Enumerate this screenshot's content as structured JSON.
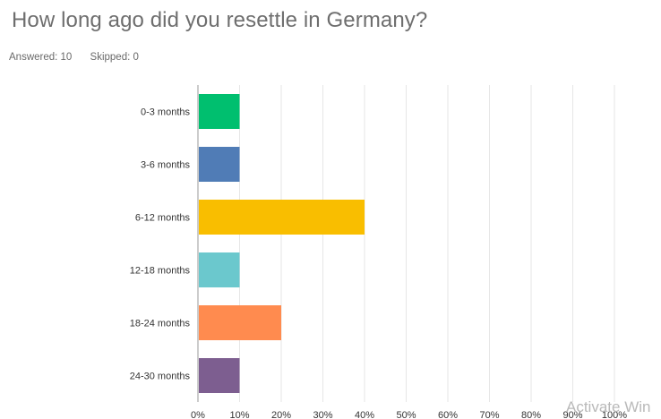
{
  "question": {
    "title": "How long ago did you resettle in Germany?",
    "answered": "Answered: 10",
    "skipped": "Skipped: 0"
  },
  "watermark": "Activate Win",
  "chart_data": {
    "type": "bar",
    "orientation": "horizontal",
    "categories": [
      "0-3 months",
      "3-6 months",
      "6-12 months",
      "12-18 months",
      "18-24 months",
      "24-30 months"
    ],
    "values": [
      10,
      10,
      40,
      10,
      20,
      10
    ],
    "colors": [
      "#00bf6f",
      "#507cb6",
      "#f9be00",
      "#6bc8cd",
      "#ff8b4f",
      "#7d5e90"
    ],
    "xlim": [
      0,
      100
    ],
    "xticks": [
      "0%",
      "10%",
      "20%",
      "30%",
      "40%",
      "50%",
      "60%",
      "70%",
      "80%",
      "90%",
      "100%"
    ],
    "grid": true
  }
}
